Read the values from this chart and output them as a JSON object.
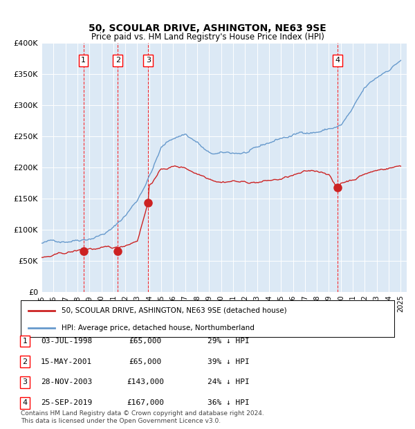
{
  "title": "50, SCOULAR DRIVE, ASHINGTON, NE63 9SE",
  "subtitle": "Price paid vs. HM Land Registry's House Price Index (HPI)",
  "background_color": "#dce9f5",
  "plot_bg_color": "#dce9f5",
  "hpi_color": "#6699cc",
  "price_color": "#cc2222",
  "ylabel_ticks": [
    "£0",
    "£50K",
    "£100K",
    "£150K",
    "£200K",
    "£250K",
    "£300K",
    "£350K",
    "£400K"
  ],
  "ylabel_values": [
    0,
    50000,
    100000,
    150000,
    200000,
    250000,
    300000,
    350000,
    400000
  ],
  "xlim_start": 1995.0,
  "xlim_end": 2025.5,
  "ylim_min": 0,
  "ylim_max": 400000,
  "x_ticks": [
    1995,
    1996,
    1997,
    1998,
    1999,
    2000,
    2001,
    2002,
    2003,
    2004,
    2005,
    2006,
    2007,
    2008,
    2009,
    2010,
    2011,
    2012,
    2013,
    2014,
    2015,
    2016,
    2017,
    2018,
    2019,
    2020,
    2021,
    2022,
    2023,
    2024,
    2025
  ],
  "sale_dates": [
    1998.5,
    2001.37,
    2003.91,
    2019.73
  ],
  "sale_prices": [
    65000,
    65000,
    143000,
    167000
  ],
  "sale_labels": [
    "1",
    "2",
    "3",
    "4"
  ],
  "legend_price_label": "50, SCOULAR DRIVE, ASHINGTON, NE63 9SE (detached house)",
  "legend_hpi_label": "HPI: Average price, detached house, Northumberland",
  "table_entries": [
    [
      "1",
      "03-JUL-1998",
      "£65,000",
      "29% ↓ HPI"
    ],
    [
      "2",
      "15-MAY-2001",
      "£65,000",
      "39% ↓ HPI"
    ],
    [
      "3",
      "28-NOV-2003",
      "£143,000",
      "24% ↓ HPI"
    ],
    [
      "4",
      "25-SEP-2019",
      "£167,000",
      "36% ↓ HPI"
    ]
  ],
  "footer": "Contains HM Land Registry data © Crown copyright and database right 2024.\nThis data is licensed under the Open Government Licence v3.0."
}
